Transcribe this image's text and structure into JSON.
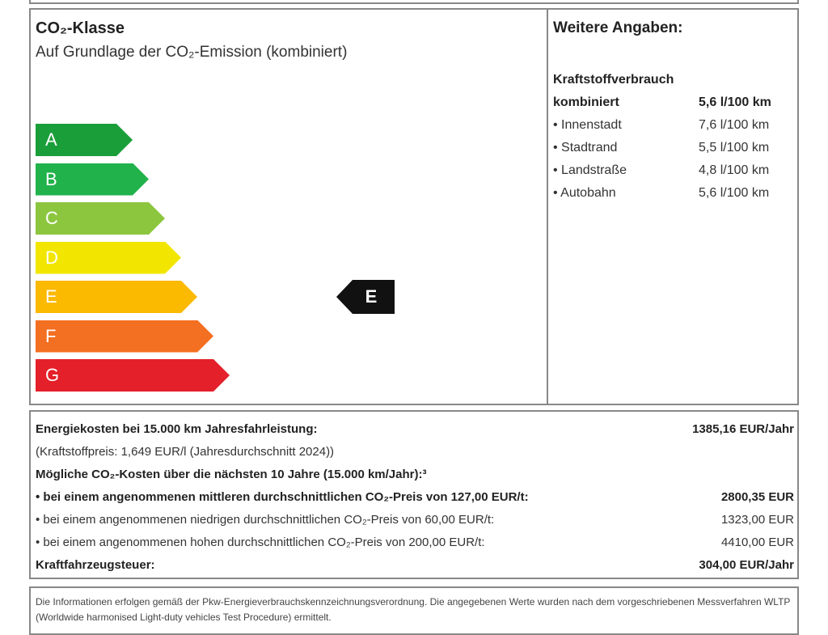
{
  "co2_class": {
    "title": "CO₂-Klasse",
    "subtitle": "Auf Grundlage der CO₂-Emission (kombiniert)",
    "classes": [
      {
        "label": "A",
        "color": "#1a9e3a"
      },
      {
        "label": "B",
        "color": "#21b24b"
      },
      {
        "label": "C",
        "color": "#8cc63f"
      },
      {
        "label": "D",
        "color": "#f2e600"
      },
      {
        "label": "E",
        "color": "#fbb900"
      },
      {
        "label": "F",
        "color": "#f36f21"
      },
      {
        "label": "G",
        "color": "#e4202a"
      }
    ],
    "current": "E"
  },
  "further": {
    "title": "Weitere Angaben:",
    "section": "Kraftstoffverbrauch",
    "rows": [
      {
        "label": "kombiniert",
        "value": "5,6 l/100 km"
      },
      {
        "label": "• Innenstadt",
        "value": "7,6 l/100 km"
      },
      {
        "label": "• Stadtrand",
        "value": "5,5 l/100 km"
      },
      {
        "label": "• Landstraße",
        "value": "4,8 l/100 km"
      },
      {
        "label": "• Autobahn",
        "value": "5,6 l/100 km"
      }
    ]
  },
  "costs": {
    "lines": [
      {
        "label": "Energiekosten bei 15.000 km Jahresfahrleistung:",
        "value": "1385,16 EUR/Jahr",
        "bold": true
      },
      {
        "label": "(Kraftstoffpreis: 1,649 EUR/l (Jahresdurchschnitt 2024))",
        "value": "",
        "bold": false
      },
      {
        "label": "Mögliche CO₂-Kosten über die nächsten 10 Jahre (15.000 km/Jahr):³",
        "value": "",
        "bold": true
      },
      {
        "label": "• bei einem angenommenen mittleren durchschnittlichen CO₂-Preis von 127,00 EUR/t:",
        "value": "2800,35 EUR",
        "bold": true
      },
      {
        "label": "• bei einem angenommenen niedrigen durchschnittlichen CO₂-Preis von 60,00 EUR/t:",
        "value": "1323,00 EUR",
        "bold": false
      },
      {
        "label": "• bei einem angenommenen hohen durchschnittlichen CO₂-Preis von 200,00 EUR/t:",
        "value": "4410,00 EUR",
        "bold": false
      },
      {
        "label": "Kraftfahrzeugsteuer:",
        "value": "304,00 EUR/Jahr",
        "bold": true
      }
    ]
  },
  "footnote": "Die Informationen erfolgen gemäß der Pkw-Energieverbrauchskennzeichnungsverordnung. Die angegebenen Werte wurden nach dem vorgeschriebenen Messverfahren WLTP (Worldwide harmonised Light-duty vehicles Test Procedure) ermittelt."
}
